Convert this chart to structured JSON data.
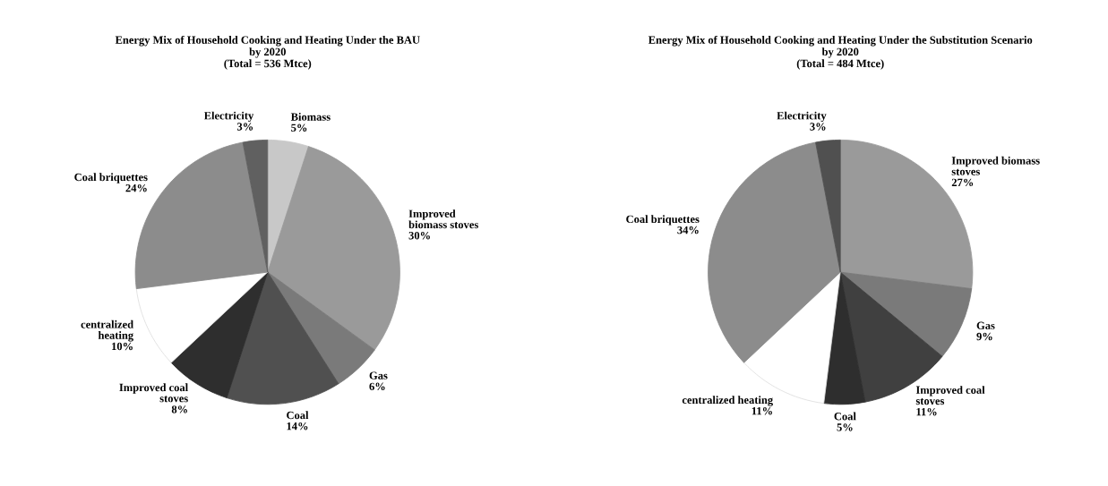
{
  "chart_data": [
    {
      "type": "pie",
      "title": "Energy Mix of Household Cooking and Heating Under the BAU\nby 2020",
      "subtitle": "(Total = 536 Mtce)",
      "categories": [
        "Biomass",
        "Improved\nbiomass stoves",
        "Gas",
        "Coal",
        "Improved coal\nstoves",
        "centralized\nheating",
        "Coal briquettes",
        "Electricity"
      ],
      "values": [
        5,
        30,
        6,
        14,
        8,
        10,
        24,
        3
      ],
      "value_labels": [
        "5%",
        "30%",
        "6%",
        "14%",
        "8%",
        "10%",
        "24%",
        "3%"
      ],
      "colors": [
        "#c8c8c8",
        "#9a9a9a",
        "#7a7a7a",
        "#505050",
        "#2e2e2e",
        "#ffffff",
        "#8c8c8c",
        "#606060"
      ]
    },
    {
      "type": "pie",
      "title": "Energy Mix of Household Cooking and Heating Under the Substitution Scenario\nby 2020",
      "subtitle": "(Total = 484 Mtce)",
      "categories": [
        "Improved biomass\nstoves",
        "Gas",
        "Improved coal\nstoves",
        "Coal",
        "centralized heating",
        "Coal briquettes",
        "Electricity"
      ],
      "values": [
        27,
        9,
        11,
        5,
        11,
        34,
        3
      ],
      "value_labels": [
        "27%",
        "9%",
        "11%",
        "5%",
        "11%",
        "34%",
        "3%"
      ],
      "colors": [
        "#9a9a9a",
        "#7a7a7a",
        "#404040",
        "#2e2e2e",
        "#ffffff",
        "#8c8c8c",
        "#505050"
      ]
    }
  ]
}
